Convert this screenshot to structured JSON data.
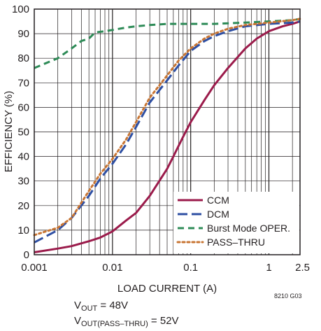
{
  "chart_data": {
    "type": "line",
    "xlabel": "LOAD CURRENT (A)",
    "ylabel": "EFFICIENCY (%)",
    "x_scale": "log",
    "xlim": [
      0.001,
      2.5
    ],
    "ylim": [
      0,
      100
    ],
    "x_tick_labels": [
      {
        "value": 0.001,
        "label": "0.001"
      },
      {
        "value": 0.01,
        "label": "0.01"
      },
      {
        "value": 0.1,
        "label": "0.1"
      },
      {
        "value": 1,
        "label": "1"
      },
      {
        "value": 2.5,
        "label": "2.5"
      }
    ],
    "y_ticks": [
      0,
      10,
      20,
      30,
      40,
      50,
      60,
      70,
      80,
      90,
      100
    ],
    "grid": true,
    "legend_position": "bottom-right",
    "series": [
      {
        "name": "CCM",
        "color": "#9b1b4b",
        "dash": "solid",
        "x": [
          0.001,
          0.002,
          0.003,
          0.005,
          0.007,
          0.01,
          0.015,
          0.02,
          0.03,
          0.05,
          0.06,
          0.08,
          0.1,
          0.15,
          0.2,
          0.3,
          0.5,
          0.7,
          1,
          1.5,
          2,
          2.5
        ],
        "y": [
          1,
          2.5,
          3.5,
          5.5,
          7,
          9.5,
          14,
          17,
          24,
          35,
          40,
          48,
          54,
          63,
          69,
          76,
          84,
          88,
          91,
          93,
          94,
          95
        ]
      },
      {
        "name": "DCM",
        "color": "#2e4fa3",
        "dash": "long-dash",
        "x": [
          0.001,
          0.002,
          0.003,
          0.005,
          0.007,
          0.01,
          0.015,
          0.02,
          0.03,
          0.05,
          0.07,
          0.1,
          0.15,
          0.2,
          0.3,
          0.5,
          1,
          2,
          2.5
        ],
        "y": [
          5,
          10,
          15,
          24,
          31,
          37,
          45,
          52,
          62,
          71,
          77,
          83,
          87,
          89,
          91,
          93,
          94,
          94.5,
          95
        ]
      },
      {
        "name": "Burst Mode OPER.",
        "color": "#2e8b57",
        "dash": "dash",
        "x": [
          0.001,
          0.002,
          0.003,
          0.004,
          0.005,
          0.006,
          0.008,
          0.01,
          0.015,
          0.02,
          0.03,
          0.05,
          0.1,
          0.2,
          0.5,
          1,
          2,
          2.5
        ],
        "y": [
          76,
          80,
          84,
          87,
          88,
          90.5,
          91,
          91.5,
          92.5,
          93,
          93.5,
          94,
          94,
          94,
          94.5,
          95,
          95.5,
          96
        ]
      },
      {
        "name": "PASS–THRU",
        "color": "#c87533",
        "dash": "dot",
        "x": [
          0.001,
          0.002,
          0.003,
          0.005,
          0.007,
          0.01,
          0.015,
          0.02,
          0.03,
          0.05,
          0.07,
          0.1,
          0.15,
          0.2,
          0.3,
          0.5,
          1,
          2,
          2.5
        ],
        "y": [
          8,
          11,
          15,
          26,
          33,
          39,
          47,
          54,
          64,
          73,
          79,
          84,
          88,
          90,
          92,
          93.5,
          94.5,
          95.5,
          96
        ]
      }
    ]
  },
  "conditions": {
    "vout_prefix": "V",
    "vout_sub": "OUT",
    "vout_value": " = 48V",
    "pass_prefix": "V",
    "pass_sub": "OUT(PASS–THRU)",
    "pass_value": " = 52V"
  },
  "figure_code": "8210 G03"
}
